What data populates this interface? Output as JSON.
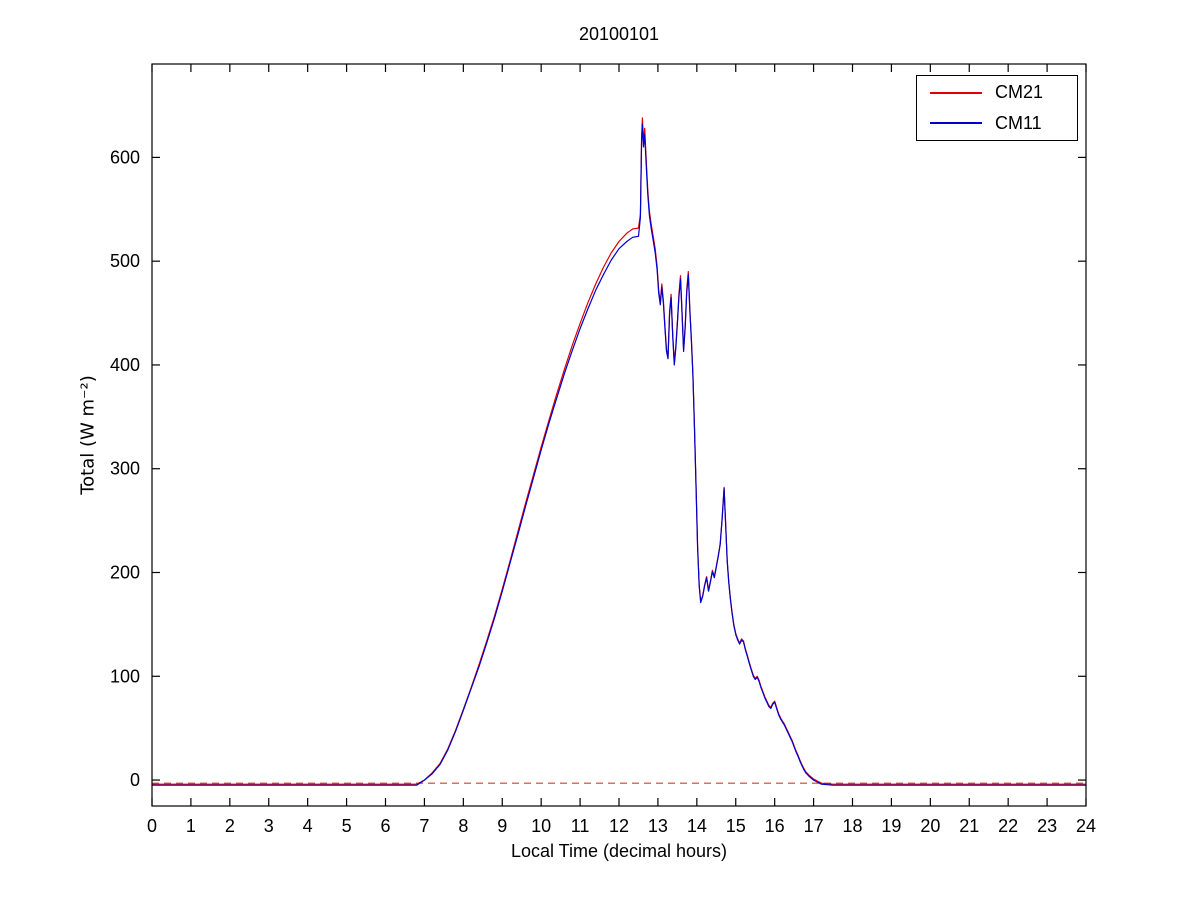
{
  "chart_data": {
    "type": "line",
    "title": "20100101",
    "xlabel": "Local Time (decimal hours)",
    "ylabel": "Total (W m⁻²)",
    "xlim": [
      0,
      24
    ],
    "ylim": [
      -25,
      690
    ],
    "xticks": [
      0,
      1,
      2,
      3,
      4,
      5,
      6,
      7,
      8,
      9,
      10,
      11,
      12,
      13,
      14,
      15,
      16,
      17,
      18,
      19,
      20,
      21,
      22,
      23,
      24
    ],
    "yticks": [
      0,
      100,
      200,
      300,
      400,
      500,
      600
    ],
    "grid": false,
    "legend_position": "top-right",
    "baseline": {
      "y": -3,
      "style": "dashed",
      "color": "#d04028"
    },
    "x": [
      0,
      0.5,
      1,
      1.5,
      2,
      2.5,
      3,
      3.5,
      4,
      4.5,
      5,
      5.5,
      6,
      6.5,
      6.8,
      7,
      7.2,
      7.4,
      7.6,
      7.8,
      8,
      8.2,
      8.4,
      8.6,
      8.8,
      9,
      9.2,
      9.4,
      9.6,
      9.8,
      10,
      10.2,
      10.4,
      10.6,
      10.8,
      11,
      11.2,
      11.4,
      11.6,
      11.8,
      12,
      12.2,
      12.35,
      12.5,
      12.55,
      12.58,
      12.6,
      12.63,
      12.66,
      12.7,
      12.74,
      12.78,
      12.83,
      12.88,
      12.93,
      12.98,
      13.02,
      13.06,
      13.1,
      13.14,
      13.18,
      13.22,
      13.26,
      13.3,
      13.34,
      13.38,
      13.42,
      13.46,
      13.5,
      13.54,
      13.58,
      13.62,
      13.66,
      13.7,
      13.74,
      13.78,
      13.82,
      13.86,
      13.9,
      13.94,
      13.98,
      14.02,
      14.06,
      14.1,
      14.15,
      14.2,
      14.25,
      14.3,
      14.35,
      14.4,
      14.45,
      14.5,
      14.55,
      14.6,
      14.65,
      14.7,
      14.74,
      14.78,
      14.82,
      14.86,
      14.9,
      14.95,
      15,
      15.05,
      15.1,
      15.15,
      15.2,
      15.25,
      15.3,
      15.35,
      15.4,
      15.45,
      15.5,
      15.55,
      15.6,
      15.65,
      15.7,
      15.75,
      15.8,
      15.85,
      15.9,
      15.95,
      16,
      16.05,
      16.1,
      16.15,
      16.2,
      16.25,
      16.3,
      16.35,
      16.4,
      16.45,
      16.5,
      16.55,
      16.6,
      16.65,
      16.7,
      16.75,
      16.8,
      16.9,
      17,
      17.1,
      17.2,
      17.5,
      18,
      18.5,
      19,
      19.5,
      20,
      20.5,
      21,
      21.5,
      22,
      22.5,
      23,
      23.5,
      24
    ],
    "series": [
      {
        "name": "CM21",
        "color": "#dd0000",
        "values": [
          -4,
          -4,
          -4,
          -4,
          -4,
          -4,
          -4,
          -4,
          -4,
          -4,
          -4,
          -4,
          -4,
          -4,
          -4,
          0,
          7,
          16,
          30,
          48,
          68,
          89,
          111,
          134,
          158,
          184,
          211,
          239,
          267,
          294,
          321,
          347,
          372,
          396,
          419,
          440,
          460,
          478,
          494,
          508,
          519,
          527,
          531,
          532,
          545,
          620,
          638,
          615,
          628,
          598,
          568,
          548,
          535,
          524,
          512,
          495,
          472,
          460,
          478,
          462,
          438,
          415,
          408,
          452,
          468,
          430,
          402,
          418,
          442,
          468,
          486,
          452,
          415,
          438,
          472,
          490,
          455,
          425,
          392,
          340,
          282,
          225,
          188,
          172,
          178,
          188,
          196,
          183,
          192,
          202,
          196,
          206,
          216,
          228,
          252,
          282,
          248,
          212,
          192,
          176,
          163,
          150,
          141,
          136,
          132,
          136,
          134,
          126,
          120,
          113,
          107,
          101,
          98,
          100,
          96,
          90,
          85,
          80,
          76,
          72,
          70,
          74,
          76,
          70,
          64,
          60,
          57,
          54,
          50,
          46,
          42,
          38,
          33,
          28,
          24,
          19,
          15,
          11,
          8,
          4,
          1,
          -1,
          -3,
          -4,
          -4,
          -4,
          -4,
          -4,
          -4,
          -4,
          -4,
          -4,
          -4,
          -4,
          -4,
          -4,
          -4
        ]
      },
      {
        "name": "CM11",
        "color": "#0000cc",
        "values": [
          -5,
          -5,
          -5,
          -5,
          -5,
          -5,
          -5,
          -5,
          -5,
          -5,
          -5,
          -5,
          -5,
          -5,
          -5,
          0,
          6,
          15,
          29,
          47,
          67,
          88,
          109,
          132,
          156,
          182,
          209,
          236,
          264,
          291,
          318,
          344,
          368,
          392,
          414,
          435,
          454,
          472,
          487,
          501,
          512,
          519,
          523,
          524,
          542,
          616,
          632,
          610,
          622,
          593,
          564,
          544,
          531,
          520,
          508,
          492,
          469,
          458,
          475,
          459,
          436,
          413,
          406,
          449,
          465,
          428,
          400,
          416,
          440,
          465,
          483,
          450,
          413,
          436,
          469,
          487,
          453,
          423,
          390,
          338,
          280,
          224,
          187,
          171,
          177,
          187,
          195,
          182,
          191,
          201,
          195,
          205,
          215,
          227,
          251,
          281,
          247,
          211,
          191,
          175,
          162,
          149,
          140,
          135,
          131,
          135,
          133,
          125,
          119,
          112,
          106,
          100,
          97,
          99,
          95,
          89,
          84,
          79,
          75,
          71,
          69,
          73,
          75,
          69,
          63,
          59,
          56,
          53,
          49,
          45,
          41,
          37,
          32,
          27,
          23,
          18,
          14,
          10,
          7,
          3,
          0,
          -2,
          -4,
          -5,
          -5,
          -5,
          -5,
          -5,
          -5,
          -5,
          -5,
          -5,
          -5,
          -5,
          -5,
          -5,
          -5
        ]
      }
    ]
  }
}
